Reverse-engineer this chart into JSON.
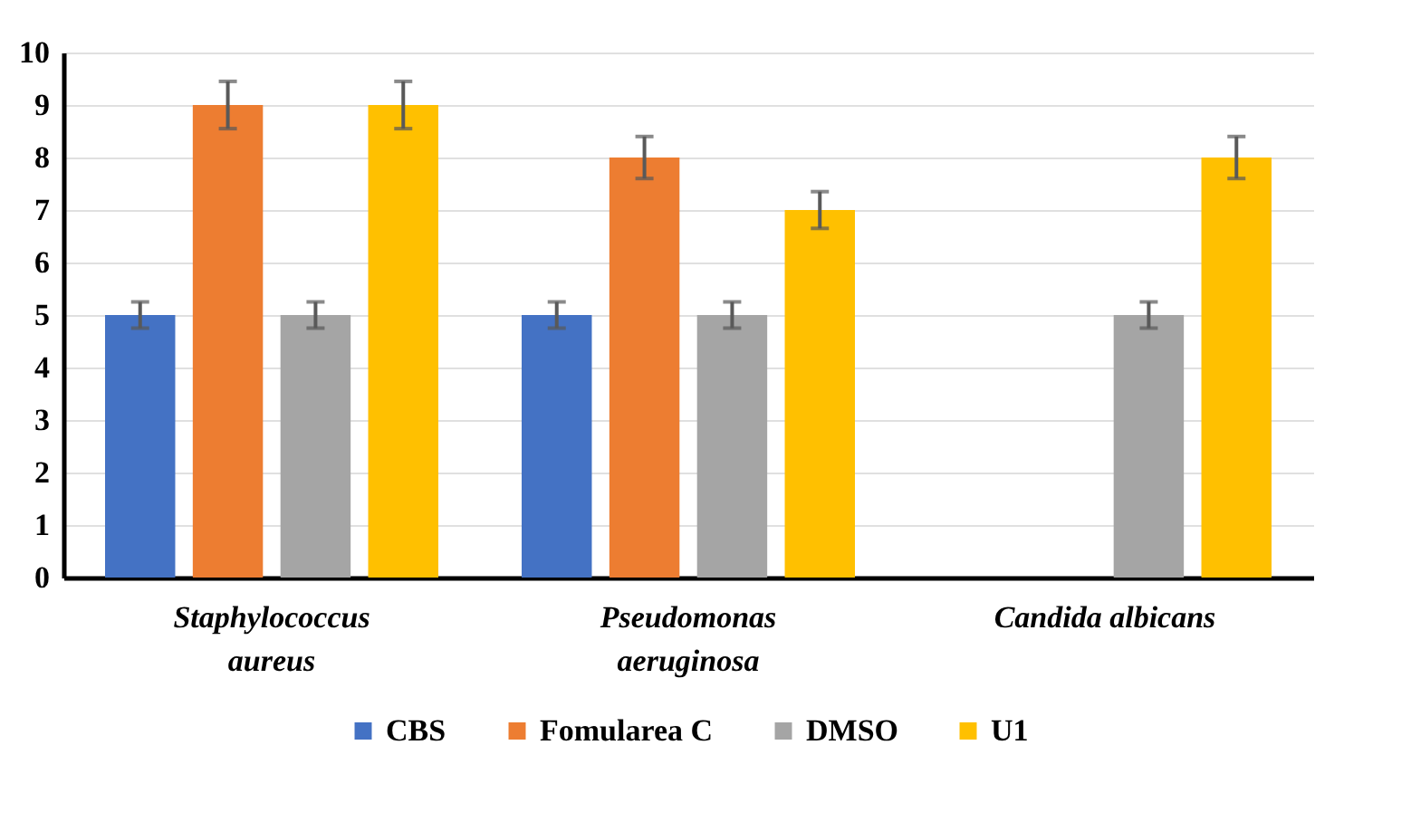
{
  "chart_data": {
    "type": "bar",
    "categories": [
      "Staphylococcus\naureus",
      "Pseudomonas\naeruginosa",
      "Candida albicans"
    ],
    "series": [
      {
        "name": "CBS",
        "color": "#4472c4",
        "values": [
          5,
          5,
          null
        ],
        "errors": [
          0.25,
          0.25,
          null
        ]
      },
      {
        "name": "Fomularea C",
        "color": "#ed7d31",
        "values": [
          9,
          8,
          null
        ],
        "errors": [
          0.45,
          0.4,
          null
        ]
      },
      {
        "name": "DMSO",
        "color": "#a5a5a5",
        "values": [
          5,
          5,
          5
        ],
        "errors": [
          0.25,
          0.25,
          0.25
        ]
      },
      {
        "name": "U1",
        "color": "#ffc000",
        "values": [
          9,
          7,
          8
        ],
        "errors": [
          0.45,
          0.35,
          0.4
        ]
      }
    ],
    "ylim": [
      0,
      10
    ],
    "yticks": [
      0,
      1,
      2,
      3,
      4,
      5,
      6,
      7,
      8,
      9,
      10
    ],
    "grid": "y",
    "legend": "bottom"
  }
}
